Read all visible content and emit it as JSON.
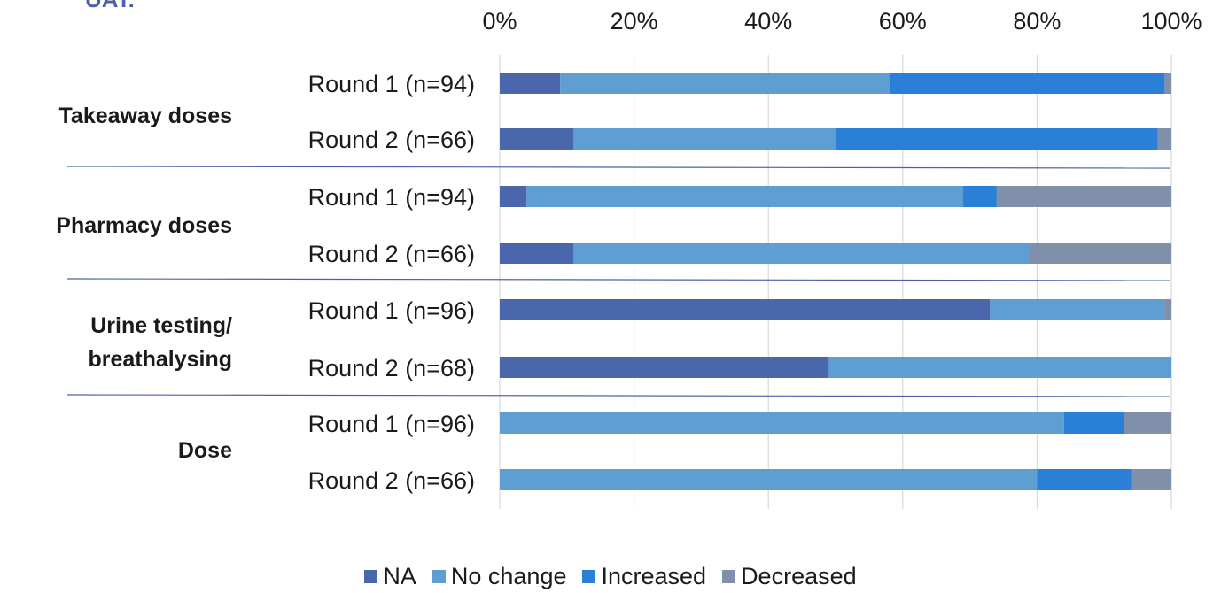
{
  "page": {
    "cut_off_title": "UAT."
  },
  "chart_data": {
    "type": "bar",
    "orientation": "horizontal",
    "stacked": "percent",
    "x_ticks": [
      "0%",
      "20%",
      "40%",
      "60%",
      "80%",
      "100%"
    ],
    "xlim": [
      0,
      100
    ],
    "x_axis_position": "top",
    "grid": true,
    "legend_position": "bottom",
    "groups": [
      {
        "label": "Takeaway doses",
        "categories": [
          "Round 1 (n=94)",
          "Round 2 (n=66)"
        ]
      },
      {
        "label": "Pharmacy doses",
        "categories": [
          "Round 1 (n=94)",
          "Round 2 (n=66)"
        ]
      },
      {
        "label": "Urine testing/\nbreathalysing",
        "categories": [
          "Round 1 (n=96)",
          "Round 2 (n=68)"
        ]
      },
      {
        "label": "Dose",
        "categories": [
          "Round 1 (n=96)",
          "Round 2 (n=66)"
        ]
      }
    ],
    "series": [
      {
        "name": "NA",
        "color": "#4a66ad",
        "values": [
          9,
          11,
          4,
          11,
          73,
          49,
          0,
          0
        ]
      },
      {
        "name": "No change",
        "color": "#5f9ed3",
        "values": [
          49,
          39,
          65,
          68,
          26,
          51,
          84,
          80
        ]
      },
      {
        "name": "Increased",
        "color": "#2a80d6",
        "values": [
          41,
          48,
          5,
          0,
          0,
          0,
          9,
          14
        ]
      },
      {
        "name": "Decreased",
        "color": "#8190aa",
        "values": [
          1,
          2,
          26,
          21,
          1,
          0,
          7,
          6
        ]
      }
    ]
  }
}
